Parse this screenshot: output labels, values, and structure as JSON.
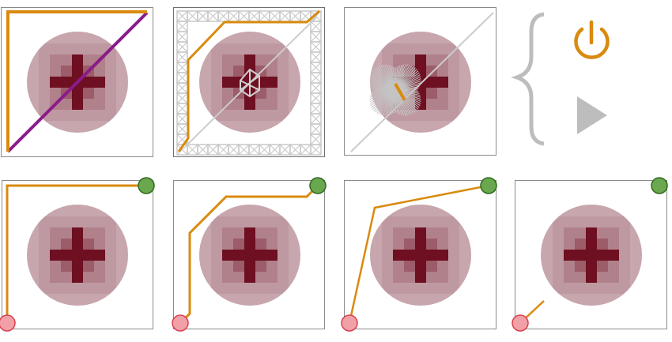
{
  "colors": {
    "path": "#d98a0f",
    "diagonal_purple": "#8b1a8b",
    "diagonal_gray": "#cccccc",
    "grid": "#c9c9c9",
    "start_marker": "#f2a0a8",
    "start_marker_stroke": "#d9404f",
    "goal_marker": "#6aa84f",
    "goal_marker_stroke": "#2f6a1e",
    "obstacle_outer": "#c9a6ae",
    "obstacle_core": "#6e0f22",
    "power_icon": "#d98a0f",
    "play_icon": "#bdbdbd",
    "brace": "#bdbdbd"
  },
  "panels": [
    {
      "id": "p1",
      "variant": "diagonal-purple"
    },
    {
      "id": "p2",
      "variant": "lattice"
    },
    {
      "id": "p3",
      "variant": "ray-fan"
    },
    {
      "id": "p4",
      "variant": "path-corner"
    },
    {
      "id": "p5",
      "variant": "path-bend"
    },
    {
      "id": "p6",
      "variant": "path-straight"
    },
    {
      "id": "p7",
      "variant": "path-short"
    }
  ],
  "controls": {
    "power_icon": "power-icon",
    "play_icon": "play-icon",
    "brace_icon": "curly-brace-icon"
  }
}
